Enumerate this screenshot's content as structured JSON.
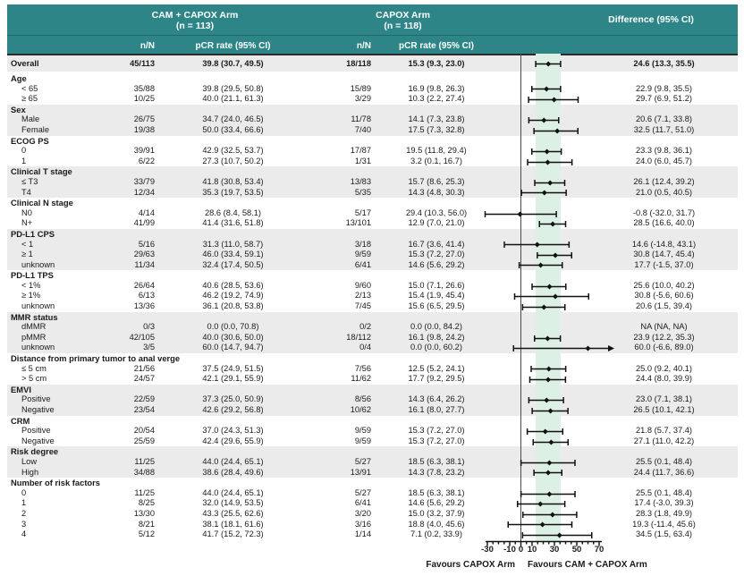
{
  "header": {
    "arm1": {
      "title": "CAM + CAPOX Arm",
      "n": "(n = 113)"
    },
    "arm2": {
      "title": "CAPOX Arm",
      "n": "(n = 118)"
    },
    "diff_title": "Difference (95% CI)",
    "cols": {
      "nN": "n/N",
      "pcr": "pCR rate (95% CI)"
    }
  },
  "axis": {
    "min": -30,
    "max": 70,
    "ticks": [
      -30,
      -10,
      0,
      10,
      30,
      50,
      70
    ],
    "minor_step": 5,
    "favours_left": "Favours CAPOX Arm",
    "favours_right": "Favours CAM + CAPOX Arm"
  },
  "colors": {
    "teal": "#2d8588",
    "stripe": "#ebebeb",
    "band": "#ddf0e6",
    "zero_line": "#4a4a4a",
    "plot_ink": "#111111"
  },
  "chart_data": {
    "type": "forest",
    "xlim": [
      -30,
      70
    ],
    "overall_ci_band": [
      13.3,
      35.5
    ],
    "groups": [
      {
        "label": null,
        "overall": true,
        "shaded": true,
        "rows": [
          {
            "label": "Overall",
            "nN1": "45/113",
            "pcr1": "39.8 (30.7, 49.5)",
            "nN2": "18/118",
            "pcr2": "15.3 (9.3, 23.0)",
            "diff": "24.6 (13.3, 35.5)",
            "est": 24.6,
            "lo": 13.3,
            "hi": 35.5
          }
        ]
      },
      {
        "label": "Age",
        "shaded": false,
        "rows": [
          {
            "label": "< 65",
            "nN1": "35/88",
            "pcr1": "39.8 (29.5, 50.8)",
            "nN2": "15/89",
            "pcr2": "16.9 (9.8, 26.3)",
            "diff": "22.9 (9.8, 35.5)",
            "est": 22.9,
            "lo": 9.8,
            "hi": 35.5
          },
          {
            "label": "≥ 65",
            "nN1": "10/25",
            "pcr1": "40.0 (21.1, 61.3)",
            "nN2": "3/29",
            "pcr2": "10.3 (2.2, 27.4)",
            "diff": "29.7 (6.9, 51.2)",
            "est": 29.7,
            "lo": 6.9,
            "hi": 51.2
          }
        ]
      },
      {
        "label": "Sex",
        "shaded": true,
        "rows": [
          {
            "label": "Male",
            "nN1": "26/75",
            "pcr1": "34.7 (24.0, 46.5)",
            "nN2": "11/78",
            "pcr2": "14.1 (7.3, 23.8)",
            "diff": "20.6 (7.1, 33.8)",
            "est": 20.6,
            "lo": 7.1,
            "hi": 33.8
          },
          {
            "label": "Female",
            "nN1": "19/38",
            "pcr1": "50.0 (33.4, 66.6)",
            "nN2": "7/40",
            "pcr2": "17.5 (7.3, 32.8)",
            "diff": "32.5 (11.7, 51.0)",
            "est": 32.5,
            "lo": 11.7,
            "hi": 51.0
          }
        ]
      },
      {
        "label": "ECOG PS",
        "shaded": false,
        "rows": [
          {
            "label": "0",
            "nN1": "39/91",
            "pcr1": "42.9 (32.5, 53.7)",
            "nN2": "17/87",
            "pcr2": "19.5 (11.8, 29.4)",
            "diff": "23.3 (9.8, 36.1)",
            "est": 23.3,
            "lo": 9.8,
            "hi": 36.1
          },
          {
            "label": "1",
            "nN1": "6/22",
            "pcr1": "27.3 (10.7, 50.2)",
            "nN2": "1/31",
            "pcr2": "3.2 (0.1, 16.7)",
            "diff": "24.0 (6.0, 45.7)",
            "est": 24.0,
            "lo": 6.0,
            "hi": 45.7
          }
        ]
      },
      {
        "label": "Clinical T stage",
        "shaded": true,
        "rows": [
          {
            "label": "≤ T3",
            "nN1": "33/79",
            "pcr1": "41.8 (30.8, 53.4)",
            "nN2": "13/83",
            "pcr2": "15.7 (8.6, 25.3)",
            "diff": "26.1 (12.4, 39.2)",
            "est": 26.1,
            "lo": 12.4,
            "hi": 39.2
          },
          {
            "label": "T4",
            "nN1": "12/34",
            "pcr1": "35.3 (19.7, 53.5)",
            "nN2": "5/35",
            "pcr2": "14.3 (4.8, 30.3)",
            "diff": "21.0 (0.5, 40.5)",
            "est": 21.0,
            "lo": 0.5,
            "hi": 40.5
          }
        ]
      },
      {
        "label": "Clinical N stage",
        "shaded": false,
        "rows": [
          {
            "label": "N0",
            "nN1": "4/14",
            "pcr1": "28.6 (8.4, 58.1)",
            "nN2": "5/17",
            "pcr2": "29.4 (10.3, 56.0)",
            "diff": "-0.8 (-32.0, 31.7)",
            "est": -0.8,
            "lo": -32.0,
            "hi": 31.7
          },
          {
            "label": "N+",
            "nN1": "41/99",
            "pcr1": "41.4 (31.6, 51.8)",
            "nN2": "13/101",
            "pcr2": "12.9 (7.0, 21.0)",
            "diff": "28.5 (16.6, 40.0)",
            "est": 28.5,
            "lo": 16.6,
            "hi": 40.0
          }
        ]
      },
      {
        "label": "PD-L1 CPS",
        "shaded": true,
        "rows": [
          {
            "label": "< 1",
            "nN1": "5/16",
            "pcr1": "31.3 (11.0, 58.7)",
            "nN2": "3/18",
            "pcr2": "16.7 (3.6, 41.4)",
            "diff": "14.6 (-14.8, 43.1)",
            "est": 14.6,
            "lo": -14.8,
            "hi": 43.1
          },
          {
            "label": "≥ 1",
            "nN1": "29/63",
            "pcr1": "46.0 (33.4, 59.1)",
            "nN2": "9/59",
            "pcr2": "15.3 (7.2, 27.0)",
            "diff": "30.8 (14.7, 45.4)",
            "est": 30.8,
            "lo": 14.7,
            "hi": 45.4
          },
          {
            "label": "unknown",
            "nN1": "11/34",
            "pcr1": "32.4 (17.4, 50.5)",
            "nN2": "6/41",
            "pcr2": "14.6 (5.6, 29.2)",
            "diff": "17.7 (-1.5, 37.0)",
            "est": 17.7,
            "lo": -1.5,
            "hi": 37.0
          }
        ]
      },
      {
        "label": "PD-L1 TPS",
        "shaded": false,
        "rows": [
          {
            "label": "< 1%",
            "nN1": "26/64",
            "pcr1": "40.6 (28.5, 53.6)",
            "nN2": "9/60",
            "pcr2": "15.0 (7.1, 26.6)",
            "diff": "25.6 (10.0, 40.2)",
            "est": 25.6,
            "lo": 10.0,
            "hi": 40.2
          },
          {
            "label": "≥ 1%",
            "nN1": "6/13",
            "pcr1": "46.2 (19.2, 74.9)",
            "nN2": "2/13",
            "pcr2": "15.4 (1.9, 45.4)",
            "diff": "30.8 (-5.6, 60.6)",
            "est": 30.8,
            "lo": -5.6,
            "hi": 60.6
          },
          {
            "label": "unknown",
            "nN1": "13/36",
            "pcr1": "36.1 (20.8, 53.8)",
            "nN2": "7/45",
            "pcr2": "15.6 (6.5, 29.5)",
            "diff": "20.6 (1.5, 39.4)",
            "est": 20.6,
            "lo": 1.5,
            "hi": 39.4
          }
        ]
      },
      {
        "label": "MMR status",
        "shaded": true,
        "rows": [
          {
            "label": "dMMR",
            "nN1": "0/3",
            "pcr1": "0.0 (0.0, 70.8)",
            "nN2": "0/2",
            "pcr2": "0.0 (0.0, 84.2)",
            "diff": "NA (NA, NA)",
            "est": null,
            "lo": null,
            "hi": null
          },
          {
            "label": "pMMR",
            "nN1": "42/105",
            "pcr1": "40.0 (30.6, 50.0)",
            "nN2": "18/112",
            "pcr2": "16.1 (9.8, 24.2)",
            "diff": "23.9 (12.2, 35.3)",
            "est": 23.9,
            "lo": 12.2,
            "hi": 35.3
          },
          {
            "label": "unknown",
            "nN1": "3/5",
            "pcr1": "60.0 (14.7, 94.7)",
            "nN2": "0/4",
            "pcr2": "0.0 (0.0, 60.2)",
            "diff": "60.0 (-6.6, 89.0)",
            "est": 60.0,
            "lo": -6.6,
            "hi": 89.0
          }
        ]
      },
      {
        "label": "Distance from primary tumor to anal verge",
        "shaded": false,
        "rows": [
          {
            "label": "≤ 5 cm",
            "nN1": "21/56",
            "pcr1": "37.5 (24.9, 51.5)",
            "nN2": "7/56",
            "pcr2": "12.5 (5.2, 24.1)",
            "diff": "25.0 (9.2, 40.1)",
            "est": 25.0,
            "lo": 9.2,
            "hi": 40.1
          },
          {
            "label": "> 5 cm",
            "nN1": "24/57",
            "pcr1": "42.1 (29.1, 55.9)",
            "nN2": "11/62",
            "pcr2": "17.7 (9.2, 29.5)",
            "diff": "24.4 (8.0, 39.9)",
            "est": 24.4,
            "lo": 8.0,
            "hi": 39.9
          }
        ]
      },
      {
        "label": "EMVI",
        "shaded": true,
        "rows": [
          {
            "label": "Positive",
            "nN1": "22/59",
            "pcr1": "37.3 (25.0, 50.9)",
            "nN2": "8/56",
            "pcr2": "14.3 (6.4, 26.2)",
            "diff": "23.0 (7.1, 38.1)",
            "est": 23.0,
            "lo": 7.1,
            "hi": 38.1
          },
          {
            "label": "Negative",
            "nN1": "23/54",
            "pcr1": "42.6 (29.2, 56.8)",
            "nN2": "10/62",
            "pcr2": "16.1 (8.0, 27.7)",
            "diff": "26.5 (10.1, 42.1)",
            "est": 26.5,
            "lo": 10.1,
            "hi": 42.1
          }
        ]
      },
      {
        "label": "CRM",
        "shaded": false,
        "rows": [
          {
            "label": "Positive",
            "nN1": "20/54",
            "pcr1": "37.0 (24.3, 51.3)",
            "nN2": "9/59",
            "pcr2": "15.3 (7.2, 27.0)",
            "diff": "21.8 (5.7, 37.4)",
            "est": 21.8,
            "lo": 5.7,
            "hi": 37.4
          },
          {
            "label": "Negative",
            "nN1": "25/59",
            "pcr1": "42.4 (29.6, 55.9)",
            "nN2": "9/59",
            "pcr2": "15.3 (7.2, 27.0)",
            "diff": "27.1 (11.0, 42.2)",
            "est": 27.1,
            "lo": 11.0,
            "hi": 42.2
          }
        ]
      },
      {
        "label": "Risk degree",
        "shaded": true,
        "rows": [
          {
            "label": "Low",
            "nN1": "11/25",
            "pcr1": "44.0 (24.4, 65.1)",
            "nN2": "5/27",
            "pcr2": "18.5 (6.3, 38.1)",
            "diff": "25.5 (0.1, 48.4)",
            "est": 25.5,
            "lo": 0.1,
            "hi": 48.4
          },
          {
            "label": "High",
            "nN1": "34/88",
            "pcr1": "38.6 (28.4, 49.6)",
            "nN2": "13/91",
            "pcr2": "14.3 (7.8, 23.2)",
            "diff": "24.4 (11.7, 36.6)",
            "est": 24.4,
            "lo": 11.7,
            "hi": 36.6
          }
        ]
      },
      {
        "label": "Number of risk factors",
        "shaded": false,
        "rows": [
          {
            "label": "0",
            "nN1": "11/25",
            "pcr1": "44.0 (24.4, 65.1)",
            "nN2": "5/27",
            "pcr2": "18.5 (6.3, 38.1)",
            "diff": "25.5 (0.1, 48.4)",
            "est": 25.5,
            "lo": 0.1,
            "hi": 48.4
          },
          {
            "label": "1",
            "nN1": "8/25",
            "pcr1": "32.0 (14.9, 53.5)",
            "nN2": "6/41",
            "pcr2": "14.6 (5.6, 29.2)",
            "diff": "17.4 (-3.0, 39.3)",
            "est": 17.4,
            "lo": -3.0,
            "hi": 39.3
          },
          {
            "label": "2",
            "nN1": "13/30",
            "pcr1": "43.3 (25.5, 62.6)",
            "nN2": "3/20",
            "pcr2": "15.0 (3.2, 37.9)",
            "diff": "28.3 (1.8, 49.9)",
            "est": 28.3,
            "lo": 1.8,
            "hi": 49.9
          },
          {
            "label": "3",
            "nN1": "8/21",
            "pcr1": "38.1 (18.1, 61.6)",
            "nN2": "3/16",
            "pcr2": "18.8 (4.0, 45.6)",
            "diff": "19.3 (-11.4, 45.6)",
            "est": 19.3,
            "lo": -11.4,
            "hi": 45.6
          },
          {
            "label": "4",
            "nN1": "5/12",
            "pcr1": "41.7 (15.2, 72.3)",
            "nN2": "1/14",
            "pcr2": "7.1 (0.2, 33.9)",
            "diff": "34.5 (1.5, 63.4)",
            "est": 34.5,
            "lo": 1.5,
            "hi": 63.4
          }
        ]
      }
    ]
  }
}
